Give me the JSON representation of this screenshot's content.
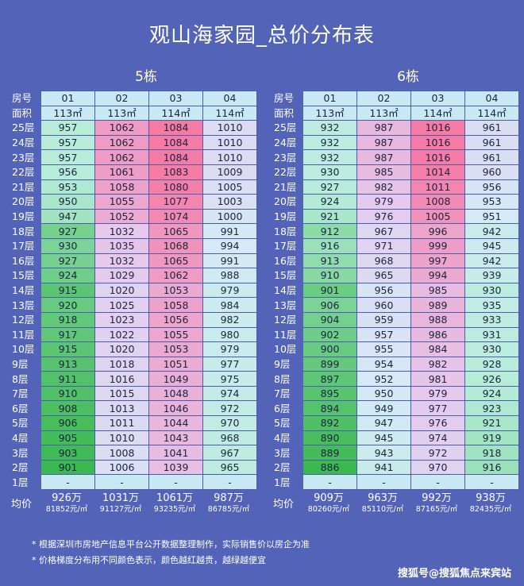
{
  "title": "观山海家园_总价分布表",
  "row_label_room": "房号",
  "row_label_area": "面积",
  "avg_label": "均价",
  "buildings": [
    {
      "name": "5栋",
      "rooms": [
        "01",
        "02",
        "03",
        "04"
      ],
      "areas": [
        "113㎡",
        "113㎡",
        "114㎡",
        "114㎡"
      ],
      "rows": [
        {
          "floor": "25层",
          "values": [
            "957",
            "1062",
            "1084",
            "1010"
          ]
        },
        {
          "floor": "24层",
          "values": [
            "957",
            "1062",
            "1084",
            "1010"
          ]
        },
        {
          "floor": "23层",
          "values": [
            "957",
            "1062",
            "1084",
            "1010"
          ]
        },
        {
          "floor": "22层",
          "values": [
            "956",
            "1061",
            "1083",
            "1009"
          ]
        },
        {
          "floor": "21层",
          "values": [
            "953",
            "1058",
            "1080",
            "1005"
          ]
        },
        {
          "floor": "20层",
          "values": [
            "950",
            "1055",
            "1077",
            "1003"
          ]
        },
        {
          "floor": "19层",
          "values": [
            "947",
            "1052",
            "1074",
            "1000"
          ]
        },
        {
          "floor": "18层",
          "values": [
            "927",
            "1032",
            "1065",
            "991"
          ]
        },
        {
          "floor": "17层",
          "values": [
            "930",
            "1035",
            "1068",
            "994"
          ]
        },
        {
          "floor": "16层",
          "values": [
            "927",
            "1032",
            "1065",
            "991"
          ]
        },
        {
          "floor": "15层",
          "values": [
            "924",
            "1029",
            "1062",
            "988"
          ]
        },
        {
          "floor": "14层",
          "values": [
            "915",
            "1020",
            "1053",
            "979"
          ]
        },
        {
          "floor": "13层",
          "values": [
            "920",
            "1025",
            "1058",
            "984"
          ]
        },
        {
          "floor": "12层",
          "values": [
            "918",
            "1023",
            "1056",
            "982"
          ]
        },
        {
          "floor": "11层",
          "values": [
            "917",
            "1022",
            "1055",
            "980"
          ]
        },
        {
          "floor": "10层",
          "values": [
            "915",
            "1020",
            "1053",
            "979"
          ]
        },
        {
          "floor": "9层",
          "values": [
            "913",
            "1018",
            "1051",
            "977"
          ]
        },
        {
          "floor": "8层",
          "values": [
            "911",
            "1016",
            "1049",
            "975"
          ]
        },
        {
          "floor": "7层",
          "values": [
            "910",
            "1015",
            "1048",
            "974"
          ]
        },
        {
          "floor": "6层",
          "values": [
            "908",
            "1013",
            "1046",
            "972"
          ]
        },
        {
          "floor": "5层",
          "values": [
            "906",
            "1011",
            "1044",
            "970"
          ]
        },
        {
          "floor": "4层",
          "values": [
            "905",
            "1010",
            "1043",
            "968"
          ]
        },
        {
          "floor": "3层",
          "values": [
            "903",
            "1008",
            "1041",
            "967"
          ]
        },
        {
          "floor": "2层",
          "values": [
            "901",
            "1006",
            "1039",
            "965"
          ]
        },
        {
          "floor": "1层",
          "values": [
            "-",
            "-",
            "-",
            "-"
          ]
        }
      ],
      "avg_total": [
        "926万",
        "1031万",
        "1061万",
        "987万"
      ],
      "avg_unit": [
        "81852元/㎡",
        "91127元/㎡",
        "93235元/㎡",
        "86785元/㎡"
      ]
    },
    {
      "name": "6栋",
      "rooms": [
        "01",
        "02",
        "03",
        "04"
      ],
      "areas": [
        "113㎡",
        "113㎡",
        "114㎡",
        "114㎡"
      ],
      "rows": [
        {
          "floor": "25层",
          "values": [
            "932",
            "987",
            "1016",
            "961"
          ]
        },
        {
          "floor": "24层",
          "values": [
            "932",
            "987",
            "1016",
            "961"
          ]
        },
        {
          "floor": "23层",
          "values": [
            "932",
            "987",
            "1016",
            "961"
          ]
        },
        {
          "floor": "22层",
          "values": [
            "930",
            "985",
            "1014",
            "960"
          ]
        },
        {
          "floor": "21层",
          "values": [
            "927",
            "982",
            "1011",
            "956"
          ]
        },
        {
          "floor": "20层",
          "values": [
            "924",
            "979",
            "1008",
            "953"
          ]
        },
        {
          "floor": "19层",
          "values": [
            "921",
            "976",
            "1005",
            "951"
          ]
        },
        {
          "floor": "18层",
          "values": [
            "912",
            "967",
            "996",
            "942"
          ]
        },
        {
          "floor": "17层",
          "values": [
            "916",
            "971",
            "999",
            "945"
          ]
        },
        {
          "floor": "16层",
          "values": [
            "913",
            "968",
            "997",
            "942"
          ]
        },
        {
          "floor": "15层",
          "values": [
            "910",
            "965",
            "994",
            "939"
          ]
        },
        {
          "floor": "14层",
          "values": [
            "901",
            "956",
            "985",
            "930"
          ]
        },
        {
          "floor": "13层",
          "values": [
            "906",
            "960",
            "989",
            "935"
          ]
        },
        {
          "floor": "12层",
          "values": [
            "904",
            "959",
            "988",
            "933"
          ]
        },
        {
          "floor": "11层",
          "values": [
            "902",
            "957",
            "986",
            "931"
          ]
        },
        {
          "floor": "10层",
          "values": [
            "900",
            "955",
            "984",
            "930"
          ]
        },
        {
          "floor": "9层",
          "values": [
            "899",
            "954",
            "982",
            "928"
          ]
        },
        {
          "floor": "8层",
          "values": [
            "897",
            "952",
            "981",
            "926"
          ]
        },
        {
          "floor": "7层",
          "values": [
            "895",
            "950",
            "979",
            "924"
          ]
        },
        {
          "floor": "6层",
          "values": [
            "894",
            "949",
            "977",
            "923"
          ]
        },
        {
          "floor": "5层",
          "values": [
            "892",
            "947",
            "976",
            "921"
          ]
        },
        {
          "floor": "4层",
          "values": [
            "890",
            "945",
            "974",
            "919"
          ]
        },
        {
          "floor": "3层",
          "values": [
            "889",
            "943",
            "972",
            "918"
          ]
        },
        {
          "floor": "2层",
          "values": [
            "886",
            "941",
            "970",
            "916"
          ]
        },
        {
          "floor": "1层",
          "values": [
            "-",
            "-",
            "-",
            "-"
          ]
        }
      ],
      "avg_total": [
        "909万",
        "963万",
        "992万",
        "938万"
      ],
      "avg_unit": [
        "80260元/㎡",
        "85110元/㎡",
        "87165元/㎡",
        "82435元/㎡"
      ]
    }
  ],
  "notes": [
    "* 根据深圳市房地产信息平台公开数据整理制作，实际销售价以房企为准",
    "* 价格梯度分布用不同颜色表示，颜色越红越贵，越绿越便宜"
  ],
  "watermark": "搜狐号@搜狐焦点来宾站",
  "colors": {
    "background": "#5364b8",
    "header_cell": "#c8e8f4",
    "cheap": "#3cb850",
    "expensive": "#f57aa4"
  }
}
